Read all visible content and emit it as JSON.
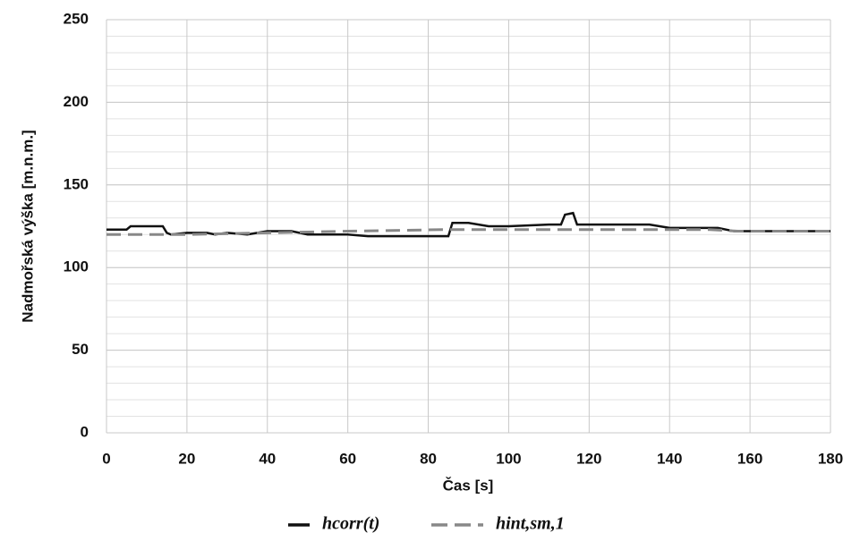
{
  "chart_data": {
    "type": "line",
    "xlabel": "Čas [s]",
    "ylabel": "Nadmořská výška [m.n.m.]",
    "xlim": [
      0,
      180
    ],
    "xticks": [
      0,
      20,
      40,
      60,
      80,
      100,
      120,
      140,
      160,
      180
    ],
    "ylim": [
      0,
      250
    ],
    "yticks": [
      0,
      50,
      100,
      150,
      200,
      250
    ],
    "grid": true,
    "legend": "bottom",
    "series": [
      {
        "name": "hcorr(t)",
        "color": "#111111",
        "dash": false,
        "x": [
          0,
          5,
          6,
          14,
          15,
          16,
          20,
          25,
          27,
          30,
          35,
          40,
          46,
          50,
          60,
          65,
          75,
          85,
          86,
          90,
          95,
          100,
          110,
          113,
          114,
          116,
          117,
          120,
          135,
          140,
          152,
          156,
          160,
          180
        ],
        "values": [
          123,
          123,
          125,
          125,
          121,
          120,
          121,
          121,
          120,
          121,
          120,
          122,
          122,
          120,
          120,
          119,
          119,
          119,
          127,
          127,
          125,
          125,
          126,
          126,
          132,
          133,
          126,
          126,
          126,
          124,
          124,
          122,
          122,
          122
        ]
      },
      {
        "name": "hint,sm,1",
        "color": "#888888",
        "dash": true,
        "x": [
          0,
          20,
          40,
          60,
          85,
          150,
          157,
          180
        ],
        "values": [
          120,
          120,
          121,
          122,
          123,
          123,
          122,
          122
        ]
      }
    ]
  }
}
